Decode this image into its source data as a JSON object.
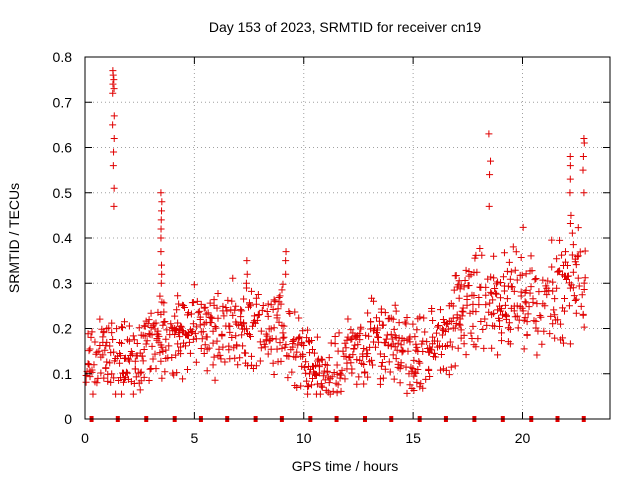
{
  "chart_data": {
    "type": "scatter",
    "title": "Day 153 of 2023, SRMTID for receiver cn19",
    "xlabel": "GPS time / hours",
    "ylabel": "SRMTID / TECUs",
    "xlim": [
      0,
      24
    ],
    "ylim": [
      0,
      0.8
    ],
    "xticks": [
      0,
      5,
      10,
      15,
      20
    ],
    "yticks": [
      0,
      0.1,
      0.2,
      0.3,
      0.4,
      0.5,
      0.6,
      0.7,
      0.8
    ],
    "xtick_labels": [
      "0",
      "5",
      "10",
      "15",
      "20"
    ],
    "ytick_labels": [
      "0",
      "0.1",
      "0.2",
      "0.3",
      "0.4",
      "0.5",
      "0.6",
      "0.7",
      "0.8"
    ],
    "grid": true,
    "marker": "+",
    "color": "#e00000",
    "point_count_note": "dense scatter, approximated",
    "trend": {
      "x": [
        0,
        1,
        2,
        3,
        4,
        5,
        6,
        7,
        8,
        9,
        10,
        11,
        12,
        13,
        14,
        15,
        16,
        17,
        18,
        19,
        20,
        21,
        22,
        22.8
      ],
      "y": [
        0.11,
        0.15,
        0.13,
        0.16,
        0.19,
        0.2,
        0.19,
        0.22,
        0.19,
        0.2,
        0.13,
        0.1,
        0.14,
        0.17,
        0.16,
        0.14,
        0.17,
        0.22,
        0.28,
        0.24,
        0.28,
        0.27,
        0.3,
        0.32
      ]
    },
    "spikes": [
      {
        "x": 1.3,
        "y": [
          0.47,
          0.51,
          0.56,
          0.59,
          0.62,
          0.65,
          0.67,
          0.72,
          0.73,
          0.74,
          0.75,
          0.76,
          0.77
        ]
      },
      {
        "x": 3.5,
        "y": [
          0.3,
          0.32,
          0.34,
          0.37,
          0.4,
          0.42,
          0.44,
          0.46,
          0.48,
          0.5
        ]
      },
      {
        "x": 7.4,
        "y": [
          0.3,
          0.32,
          0.35
        ]
      },
      {
        "x": 9.2,
        "y": [
          0.32,
          0.35,
          0.37
        ]
      },
      {
        "x": 18.5,
        "y": [
          0.47,
          0.54,
          0.57,
          0.63
        ]
      },
      {
        "x": 22.2,
        "y": [
          0.45,
          0.5,
          0.53,
          0.56,
          0.58
        ]
      },
      {
        "x": 22.8,
        "y": [
          0.5,
          0.55,
          0.58,
          0.61,
          0.62
        ]
      }
    ],
    "baseline_markers_x": [
      0.3,
      1.5,
      2.8,
      4.1,
      5.3,
      6.5,
      7.8,
      9.0,
      10.3,
      11.5,
      12.8,
      14.0,
      15.3,
      16.5,
      17.8,
      19.1,
      20.4,
      21.6,
      22.8
    ]
  }
}
